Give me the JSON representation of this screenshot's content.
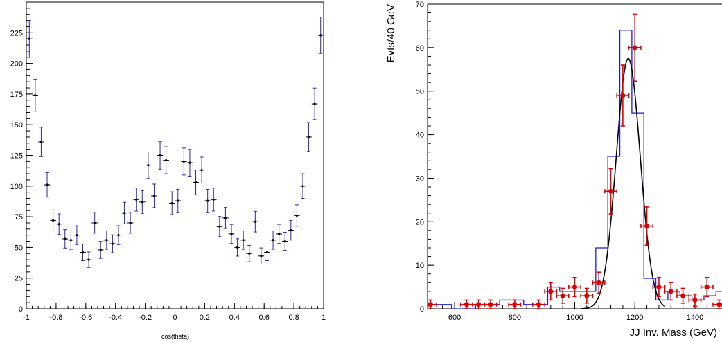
{
  "chart_data": [
    {
      "type": "scatter",
      "xlabel": "cos(theta)",
      "ylabel": "",
      "xlim": [
        -1,
        1
      ],
      "ylim": [
        0,
        250
      ],
      "x_ticks": [
        "-1",
        "-0.8",
        "-0.6",
        "-0.4",
        "-0.2",
        "0",
        "0.2",
        "0.4",
        "0.6",
        "0.8",
        "1"
      ],
      "y_ticks": [
        "0",
        "25",
        "50",
        "75",
        "100",
        "125",
        "150",
        "175",
        "200",
        "225"
      ],
      "grid": false,
      "colors": {
        "points": "#000000",
        "error_bars": "#2a2aa8"
      },
      "series": [
        {
          "x": [
            -0.98,
            -0.94,
            -0.9,
            -0.86,
            -0.82,
            -0.78,
            -0.74,
            -0.7,
            -0.66,
            -0.62,
            -0.58,
            -0.54,
            -0.5,
            -0.46,
            -0.42,
            -0.38,
            -0.34,
            -0.3,
            -0.26,
            -0.22,
            -0.18,
            -0.14,
            -0.1,
            -0.06,
            -0.02,
            0.02,
            0.06,
            0.1,
            0.14,
            0.18,
            0.22,
            0.26,
            0.3,
            0.34,
            0.38,
            0.42,
            0.46,
            0.5,
            0.54,
            0.58,
            0.62,
            0.66,
            0.7,
            0.74,
            0.78,
            0.82,
            0.86,
            0.9,
            0.94,
            0.98
          ],
          "y": [
            220,
            174,
            136,
            101,
            72,
            69,
            57,
            56,
            60,
            46,
            40,
            70,
            48,
            56,
            53,
            60,
            78,
            70,
            89,
            87,
            117,
            92,
            125,
            121,
            86,
            88,
            120,
            119,
            103,
            113,
            88,
            89,
            67,
            74,
            61,
            50,
            56,
            45,
            71,
            43,
            46,
            56,
            61,
            55,
            64,
            76,
            100,
            140,
            167,
            223
          ],
          "yerr": [
            15,
            13,
            12,
            10,
            8.5,
            8.3,
            7.5,
            7.5,
            7.7,
            6.8,
            6.3,
            8.4,
            6.9,
            7.5,
            7.3,
            7.7,
            8.8,
            8.4,
            9.4,
            9.3,
            10.8,
            9.6,
            11.2,
            11,
            9.3,
            9.4,
            11,
            10.9,
            10.1,
            10.6,
            9.4,
            9.4,
            8.2,
            8.6,
            7.8,
            7.1,
            7.5,
            6.7,
            8.4,
            6.6,
            6.8,
            7.5,
            7.8,
            7.4,
            8,
            8.7,
            10,
            11.8,
            12.9,
            14.9
          ]
        }
      ]
    },
    {
      "type": "bar",
      "xlabel": "JJ Inv. Mass (GeV)",
      "ylabel": "Evts/40 GeV",
      "xlim": [
        510,
        1490
      ],
      "ylim": [
        0,
        70
      ],
      "x_ticks": [
        "600",
        "800",
        "1000",
        "1200",
        "1400"
      ],
      "y_ticks": [
        "0",
        "10",
        "20",
        "30",
        "40",
        "50",
        "60",
        "70"
      ],
      "grid": false,
      "colors": {
        "histogram": "#1a1ad0",
        "data": "#e00000",
        "fit": "#000000"
      },
      "histogram": {
        "bin_edges": [
          510,
          550,
          590,
          630,
          670,
          710,
          750,
          790,
          830,
          870,
          910,
          950,
          990,
          1030,
          1070,
          1110,
          1150,
          1190,
          1230,
          1270,
          1310,
          1350,
          1390,
          1430,
          1470,
          1510
        ],
        "values": [
          1,
          1,
          0,
          0,
          1,
          1,
          2,
          2,
          1,
          1,
          5,
          4,
          4,
          4,
          14,
          35,
          64,
          45,
          7,
          2,
          4,
          3,
          2,
          3,
          4
        ]
      },
      "data_points": {
        "x": [
          520,
          640,
          680,
          720,
          800,
          880,
          920,
          960,
          1000,
          1040,
          1080,
          1120,
          1160,
          1200,
          1240,
          1280,
          1320,
          1360,
          1400,
          1440,
          1480
        ],
        "y": [
          1,
          1,
          1,
          1,
          1,
          1,
          4,
          3,
          5,
          3,
          6,
          27,
          49,
          60,
          19,
          5,
          4,
          3,
          2,
          5,
          1
        ],
        "yerr": [
          1,
          1,
          1,
          1,
          1,
          1,
          2,
          1.7,
          2.2,
          1.7,
          2.4,
          5.2,
          7,
          7.7,
          4.4,
          2.2,
          2,
          1.7,
          1.4,
          2.2,
          1
        ],
        "xerr": 20
      },
      "fit": {
        "type": "gaussian",
        "mean": 1178,
        "sigma": 40,
        "amplitude": 57.5,
        "range": [
          1020,
          1300
        ]
      }
    }
  ]
}
